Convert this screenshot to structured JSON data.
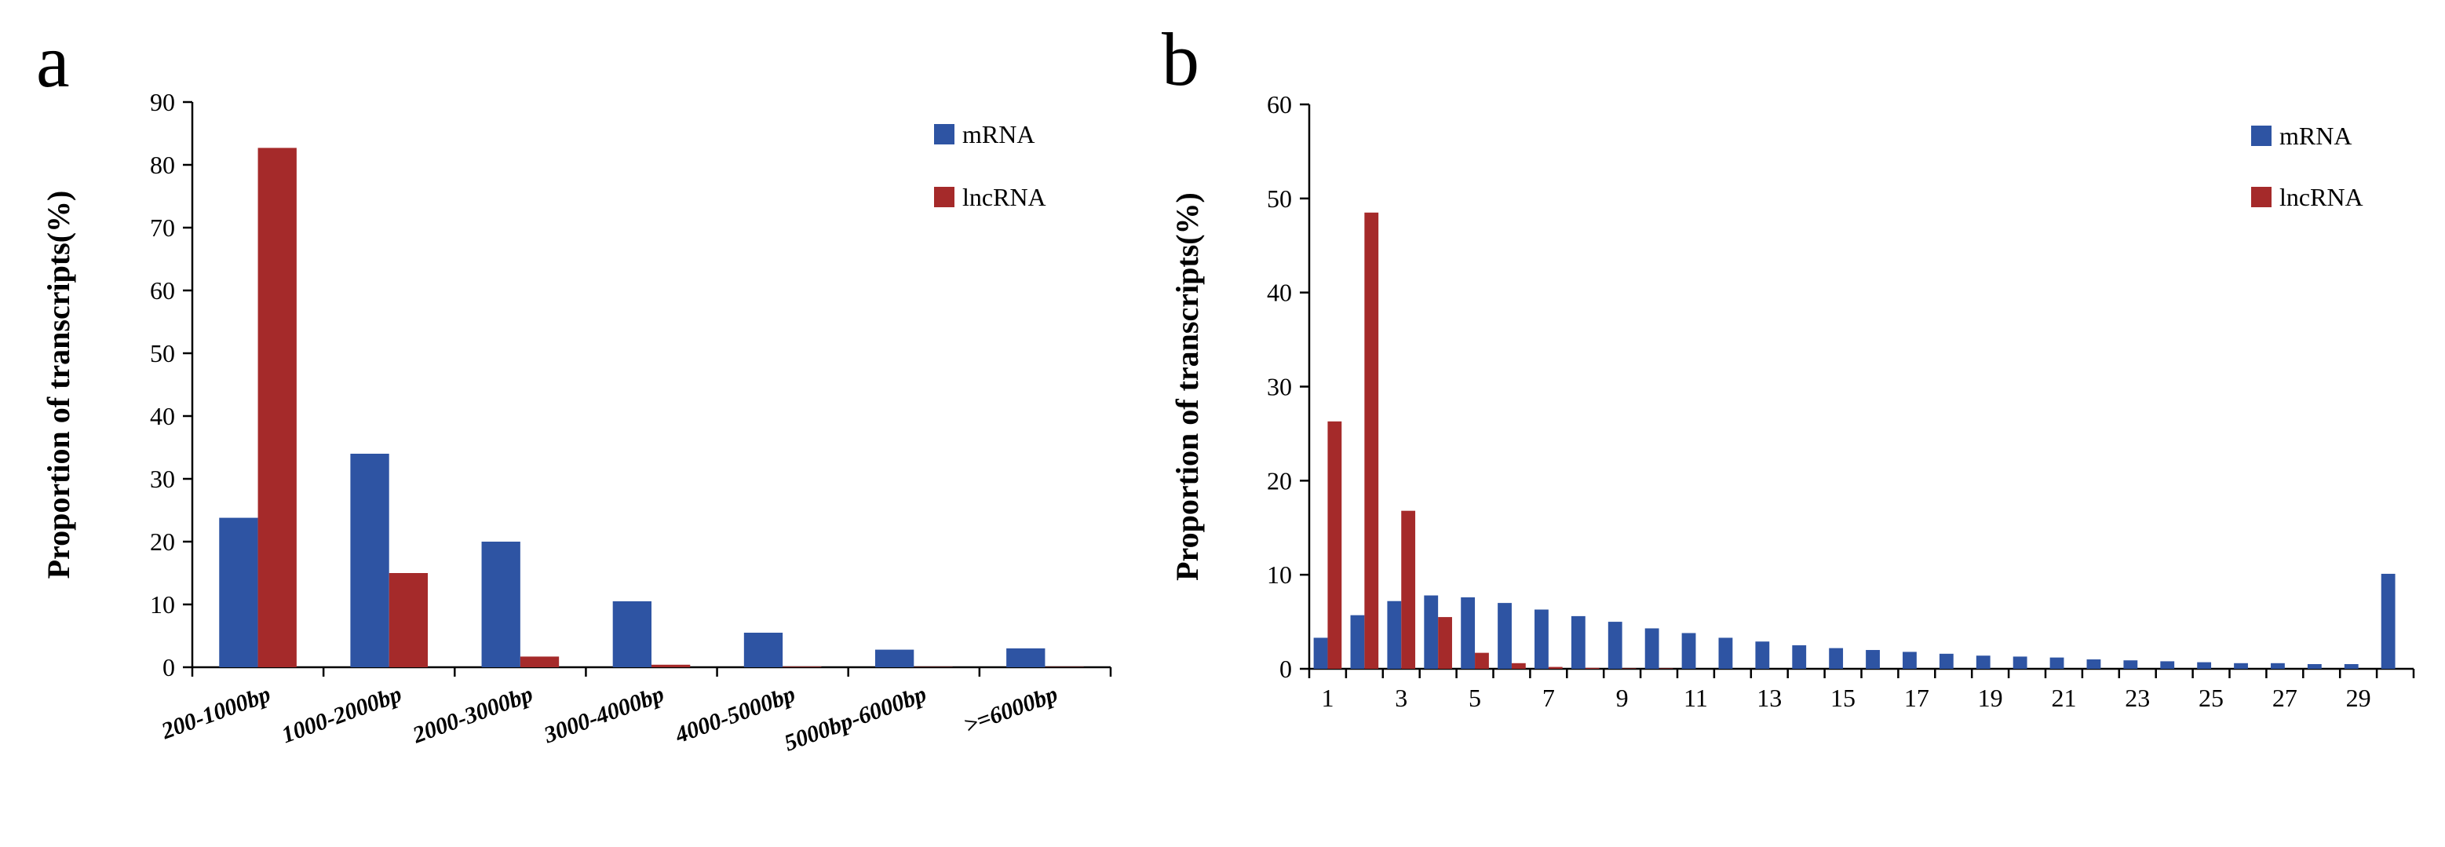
{
  "chart_data": [
    {
      "panel": "a",
      "type": "bar",
      "ylabel": "Proportion of transcripts(%)",
      "xlabel": "",
      "ylim": [
        0,
        90
      ],
      "yticks": [
        0,
        10,
        20,
        30,
        40,
        50,
        60,
        70,
        80,
        90
      ],
      "categories": [
        "200-1000bp",
        "1000-2000bp",
        "2000-3000bp",
        "3000-4000bp",
        "4000-5000bp",
        "5000bp-6000bp",
        ">=6000bp"
      ],
      "series": [
        {
          "name": "mRNA",
          "color": "#2E54A3",
          "values": [
            23.8,
            34.0,
            20.0,
            10.5,
            5.5,
            2.8,
            3.0
          ]
        },
        {
          "name": "lncRNA",
          "color": "#A52A2A",
          "values": [
            82.7,
            15.0,
            1.7,
            0.4,
            0.1,
            0.05,
            0.05
          ]
        }
      ],
      "legend_position": "top-right",
      "grid": false
    },
    {
      "panel": "b",
      "type": "bar",
      "ylabel": "Proportion of transcripts(%)",
      "xlabel": "",
      "ylim": [
        0,
        60
      ],
      "yticks": [
        0,
        10,
        20,
        30,
        40,
        50,
        60
      ],
      "categories": [
        "1",
        "2",
        "3",
        "4",
        "5",
        "6",
        "7",
        "8",
        "9",
        "10",
        "11",
        "12",
        "13",
        "14",
        "15",
        "16",
        "17",
        "18",
        "19",
        "20",
        "21",
        "22",
        "23",
        "24",
        "25",
        "26",
        "27",
        "28",
        "29",
        "30"
      ],
      "xtick_labels": [
        "1",
        "",
        "3",
        "",
        "5",
        "",
        "7",
        "",
        "9",
        "",
        "11",
        "",
        "13",
        "",
        "15",
        "",
        "17",
        "",
        "19",
        "",
        "21",
        "",
        "23",
        "",
        "25",
        "",
        "27",
        "",
        "29",
        ""
      ],
      "series": [
        {
          "name": "mRNA",
          "color": "#2E54A3",
          "values": [
            3.3,
            5.7,
            7.2,
            7.8,
            7.6,
            7.0,
            6.3,
            5.6,
            5.0,
            4.3,
            3.8,
            3.3,
            2.9,
            2.5,
            2.2,
            2.0,
            1.8,
            1.6,
            1.4,
            1.3,
            1.2,
            1.0,
            0.9,
            0.8,
            0.7,
            0.6,
            0.6,
            0.5,
            0.5,
            10.1
          ]
        },
        {
          "name": "lncRNA",
          "color": "#A52A2A",
          "values": [
            26.3,
            48.5,
            16.8,
            5.5,
            1.7,
            0.6,
            0.2,
            0.1,
            0.05,
            0.05,
            0,
            0,
            0,
            0,
            0,
            0,
            0,
            0,
            0,
            0,
            0,
            0,
            0,
            0,
            0,
            0,
            0,
            0,
            0,
            0
          ]
        }
      ],
      "legend_position": "top-right",
      "grid": false
    }
  ]
}
